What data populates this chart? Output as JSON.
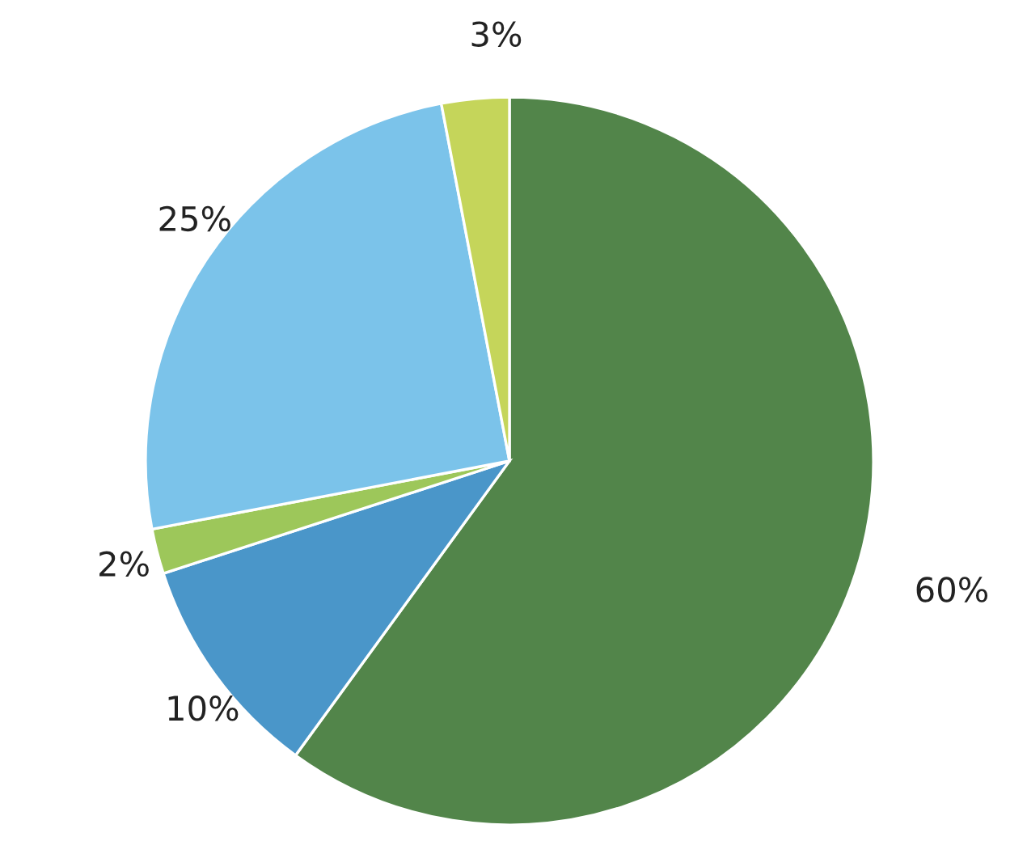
{
  "chart_data": {
    "type": "pie",
    "categories": [
      null,
      null,
      null,
      null,
      null
    ],
    "values": [
      60,
      10,
      2,
      25,
      3
    ],
    "colors": [
      "#52854a",
      "#4a96c9",
      "#9dc75a",
      "#7bc3ea",
      "#c5d55a"
    ],
    "value_labels": [
      "60%",
      "10%",
      "2%",
      "25%",
      "3%"
    ]
  }
}
